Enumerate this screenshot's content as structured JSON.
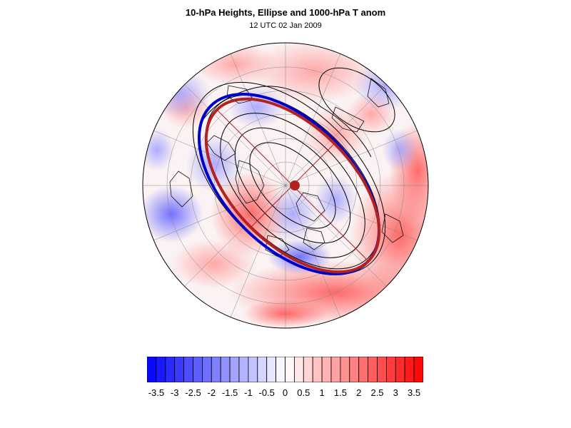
{
  "header": {
    "title": "10-hPa Heights, Ellipse and 1000-hPa T anom",
    "subtitle": "12 UTC 02 Jan 2009"
  },
  "colors": {
    "negative": "#0000ff",
    "positive": "#ff0000",
    "neutral": "#ffffff",
    "ellipse_outer": "#0000cc",
    "ellipse_inner": "#b22222",
    "center_marker": "#b22222",
    "height_contours": "#000000"
  },
  "map": {
    "projection": "polar stereographic (north pole)",
    "layers": [
      "1000-hPa temperature anomaly (shaded)",
      "10-hPa geopotential height contours",
      "fitted vortex ellipse",
      "ellipse center"
    ]
  },
  "colorbar": {
    "labels": [
      "-3.5",
      "-3",
      "-2.5",
      "-2",
      "-1.5",
      "-1",
      "-0.5",
      "0",
      "0.5",
      "1",
      "1.5",
      "2",
      "2.5",
      "3",
      "3.5"
    ],
    "min": -3.75,
    "max": 3.75,
    "step": 0.25
  }
}
